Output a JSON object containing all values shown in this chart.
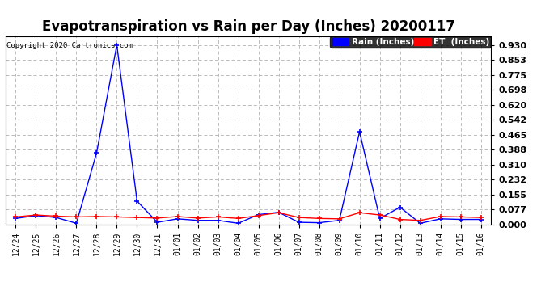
{
  "title": "Evapotranspiration vs Rain per Day (Inches) 20200117",
  "copyright": "Copyright 2020 Cartronics.com",
  "x_labels": [
    "12/24",
    "12/25",
    "12/26",
    "12/27",
    "12/28",
    "12/29",
    "12/30",
    "12/31",
    "01/01",
    "01/02",
    "01/03",
    "01/04",
    "01/05",
    "01/06",
    "01/07",
    "01/08",
    "01/09",
    "01/10",
    "01/11",
    "01/12",
    "01/13",
    "01/14",
    "01/15",
    "01/16"
  ],
  "rain_values": [
    0.03,
    0.045,
    0.035,
    0.005,
    0.37,
    0.93,
    0.12,
    0.01,
    0.028,
    0.02,
    0.02,
    0.005,
    0.05,
    0.062,
    0.01,
    0.008,
    0.02,
    0.48,
    0.03,
    0.088,
    0.005,
    0.028,
    0.025,
    0.025
  ],
  "et_values": [
    0.038,
    0.048,
    0.042,
    0.038,
    0.04,
    0.038,
    0.035,
    0.032,
    0.04,
    0.032,
    0.038,
    0.03,
    0.045,
    0.06,
    0.035,
    0.03,
    0.028,
    0.06,
    0.048,
    0.025,
    0.02,
    0.04,
    0.038,
    0.035
  ],
  "rain_color": "#0000ff",
  "et_color": "#ff0000",
  "background_color": "#ffffff",
  "grid_color": "#bbbbbb",
  "yticks": [
    0.0,
    0.077,
    0.155,
    0.232,
    0.31,
    0.388,
    0.465,
    0.542,
    0.62,
    0.698,
    0.775,
    0.853,
    0.93
  ],
  "ylim": [
    0.0,
    0.975
  ],
  "title_fontsize": 12,
  "legend_rain_label": "Rain (Inches)",
  "legend_et_label": "ET  (Inches)"
}
